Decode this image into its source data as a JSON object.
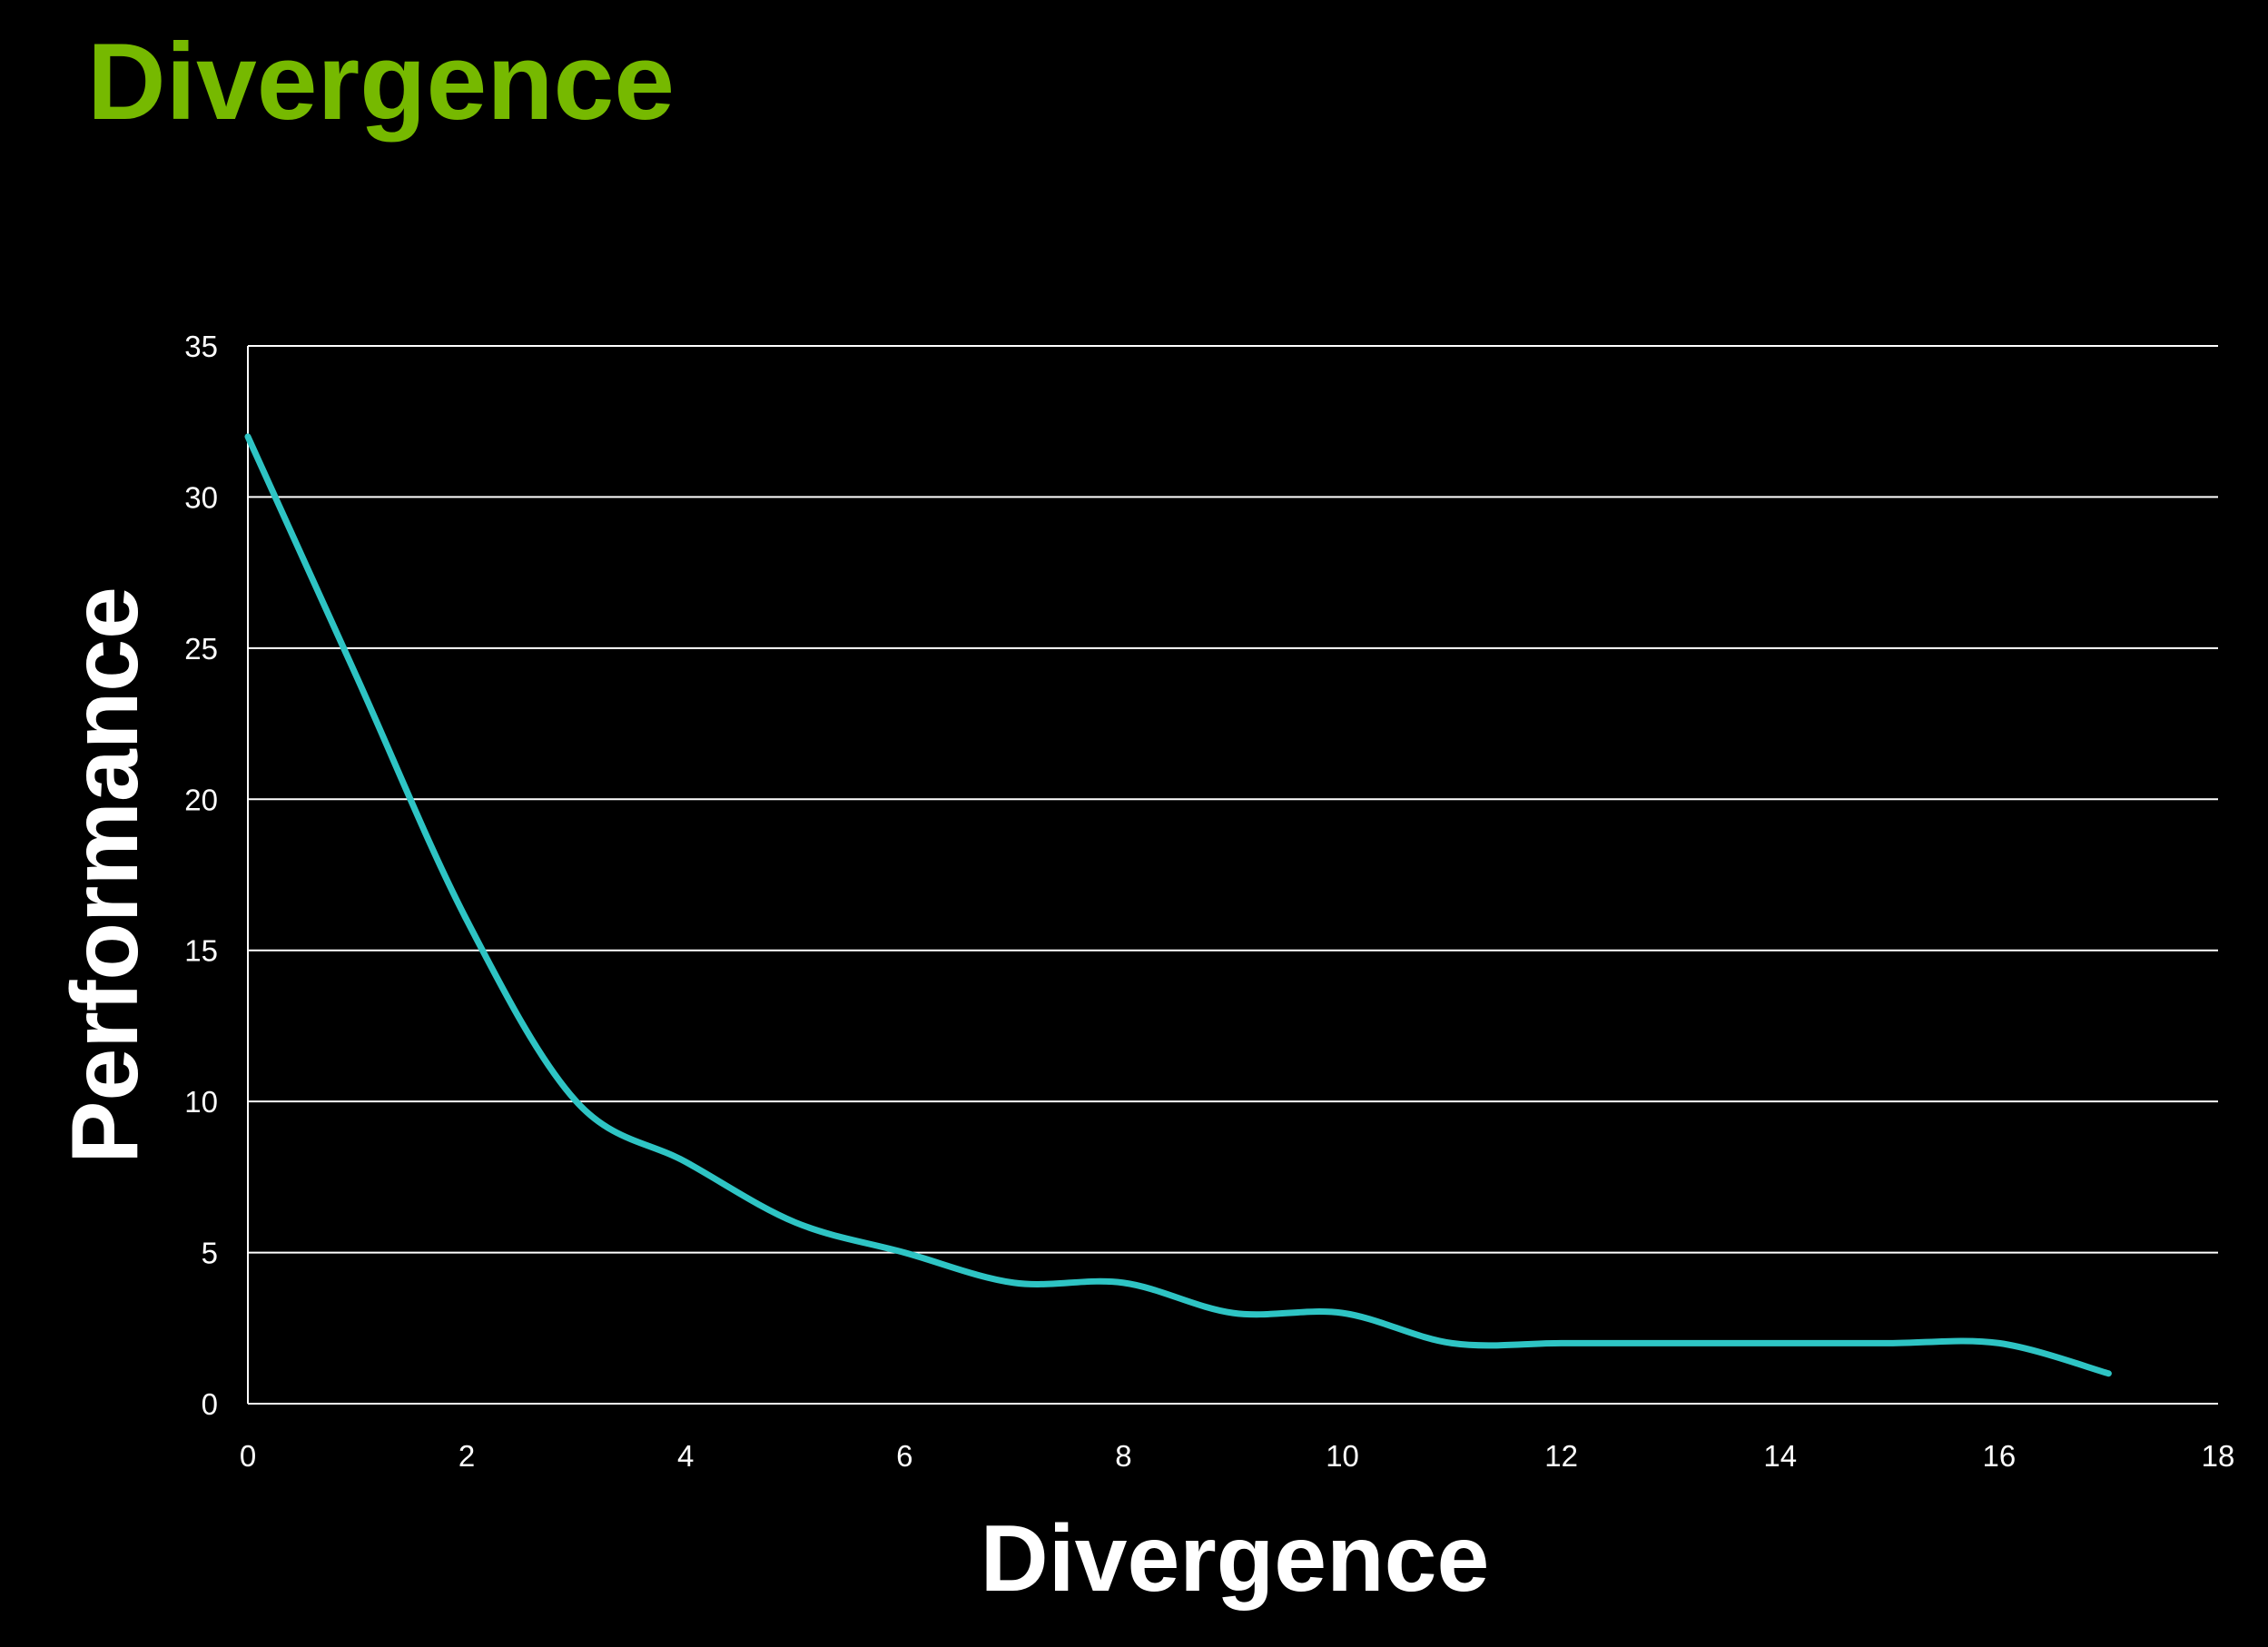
{
  "slide": {
    "title": "Divergence"
  },
  "colors": {
    "background": "#000000",
    "title": "#76b900",
    "line": "#2ec4c4",
    "grid": "#ffffff",
    "text": "#ffffff"
  },
  "chart_data": {
    "type": "line",
    "title": "",
    "xlabel": "Divergence",
    "ylabel": "Performance",
    "xlim": [
      0,
      18
    ],
    "ylim": [
      0,
      35
    ],
    "xticks": [
      0,
      2,
      4,
      6,
      8,
      10,
      12,
      14,
      16,
      18
    ],
    "yticks": [
      0,
      5,
      10,
      15,
      20,
      25,
      30,
      35
    ],
    "grid": "horizontal",
    "smooth": true,
    "series": [
      {
        "x": [
          0,
          1,
          2,
          3,
          4,
          5,
          6,
          7,
          8,
          9,
          10,
          11,
          12,
          13,
          14,
          15,
          16,
          17
        ],
        "values": [
          32,
          24,
          16,
          10,
          8,
          6,
          5,
          4,
          4,
          3,
          3,
          2,
          2,
          2,
          2,
          2,
          2,
          1
        ]
      }
    ]
  }
}
